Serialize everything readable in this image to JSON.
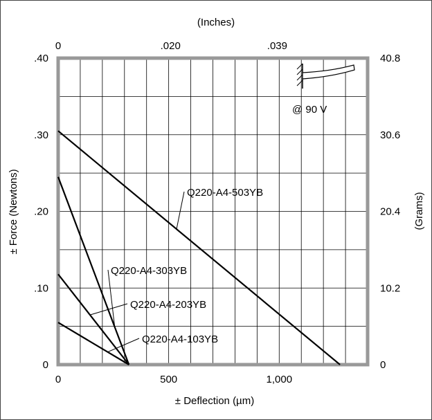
{
  "chart_data": {
    "type": "line",
    "xlabel": "± Deflection (µm)",
    "ylabel": "± Force (Newtons)",
    "x2label": "(Inches)",
    "y2label": "(Grams)",
    "xlim": [
      0,
      1400
    ],
    "ylim": [
      0,
      0.4
    ],
    "x_ticks": [
      {
        "value": 0,
        "label": "0"
      },
      {
        "value": 500,
        "label": "500"
      },
      {
        "value": 1000,
        "label": "1,000"
      }
    ],
    "y_ticks": [
      {
        "value": 0,
        "label": "0"
      },
      {
        "value": 0.1,
        "label": ".10"
      },
      {
        "value": 0.2,
        "label": ".20"
      },
      {
        "value": 0.3,
        "label": ".30"
      },
      {
        "value": 0.4,
        "label": ".40"
      }
    ],
    "x2_ticks": [
      {
        "value": 0,
        "label": "0"
      },
      {
        "value": 508,
        "label": ".020"
      },
      {
        "value": 991,
        "label": ".039"
      }
    ],
    "y2_ticks": [
      {
        "value": 0,
        "label": "0"
      },
      {
        "value": 0.1,
        "label": "10.2"
      },
      {
        "value": 0.2,
        "label": "20.4"
      },
      {
        "value": 0.3,
        "label": "30.6"
      },
      {
        "value": 0.4,
        "label": "40.8"
      }
    ],
    "grid": true,
    "annotation": "@ 90 V",
    "series": [
      {
        "name": "Q220-A4-503YB",
        "points": [
          [
            0,
            0.305
          ],
          [
            1275,
            0
          ]
        ]
      },
      {
        "name": "Q220-A4-303YB",
        "points": [
          [
            0,
            0.245
          ],
          [
            320,
            0
          ]
        ]
      },
      {
        "name": "Q220-A4-203YB",
        "points": [
          [
            0,
            0.118
          ],
          [
            320,
            0
          ]
        ]
      },
      {
        "name": "Q220-A4-103YB",
        "points": [
          [
            0,
            0.055
          ],
          [
            320,
            0
          ]
        ]
      }
    ]
  }
}
